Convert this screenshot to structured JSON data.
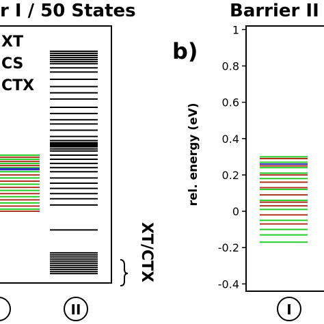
{
  "panel_a": {
    "title": "r I / 50 States",
    "legend": [
      "XT",
      "CS",
      "CTX"
    ],
    "bracket_label": "XT/CTX",
    "column_labels": [
      "I",
      "II"
    ]
  },
  "panel_b": {
    "letter": "b)",
    "title": "Barrier II /",
    "ylabel": "rel. energy (eV)",
    "column_labels": [
      "I"
    ]
  },
  "colors": {
    "XT": "#22cc22",
    "CS": "#b03020",
    "CTX": "#3030c0",
    "other": "#000000"
  },
  "chart_data": [
    {
      "type": "scatter",
      "description_of_marks": "energy-level lines",
      "title": "r I / 50 States",
      "columns": [
        "I",
        "II"
      ],
      "series": [
        {
          "column": "I",
          "name": "XT",
          "color": "#22cc22",
          "values": [
            0.52,
            0.48,
            0.44,
            0.4,
            0.36,
            0.3,
            0.24,
            0.18,
            0.12,
            0.06,
            0.0
          ]
        },
        {
          "column": "I",
          "name": "CS",
          "color": "#b03020",
          "values": [
            0.5,
            0.46,
            0.42,
            0.33,
            0.27,
            0.21,
            0.15,
            0.09,
            0.03,
            -0.02
          ]
        },
        {
          "column": "I",
          "name": "CTX",
          "color": "#3030c0",
          "values": [
            0.39,
            0.38
          ]
        },
        {
          "column": "II",
          "name": "",
          "color": "#000000",
          "values": [
            1.52,
            1.5,
            1.48,
            1.46,
            1.44,
            1.42,
            1.4,
            1.36,
            1.32,
            1.25,
            1.18,
            1.12,
            1.06,
            0.98,
            0.92,
            0.86,
            0.82,
            0.76,
            0.7,
            0.66,
            0.64,
            0.63,
            0.62,
            0.61,
            0.6,
            0.58,
            0.56,
            0.52,
            0.48,
            0.44,
            0.4,
            0.36,
            0.3,
            0.25,
            0.2,
            0.15,
            0.1,
            0.04,
            -0.2,
            -0.42,
            -0.44,
            -0.46,
            -0.48,
            -0.5,
            -0.52,
            -0.54,
            -0.56,
            -0.58,
            -0.6,
            -0.62
          ]
        }
      ]
    },
    {
      "type": "scatter",
      "description_of_marks": "energy-level lines",
      "title": "Barrier II /",
      "ylabel": "rel. energy (eV)",
      "ylim": [
        -0.44,
        1.02
      ],
      "yticks": [
        1,
        0.8,
        0.6,
        0.4,
        0.2,
        0,
        -0.2,
        -0.4
      ],
      "columns": [
        "I"
      ],
      "series": [
        {
          "column": "I",
          "name": "XT",
          "color": "#22cc22",
          "values": [
            0.3,
            0.27,
            0.24,
            0.21,
            0.18,
            0.12,
            0.06,
            0.01,
            -0.05,
            -0.1,
            -0.13,
            -0.17
          ]
        },
        {
          "column": "I",
          "name": "CS",
          "color": "#b03020",
          "values": [
            0.29,
            0.25,
            0.2,
            0.16,
            0.13,
            0.09,
            0.05,
            0.03,
            -0.02,
            -0.07
          ]
        },
        {
          "column": "I",
          "name": "CTX",
          "color": "#3030c0",
          "values": [
            0.26
          ]
        }
      ]
    }
  ]
}
